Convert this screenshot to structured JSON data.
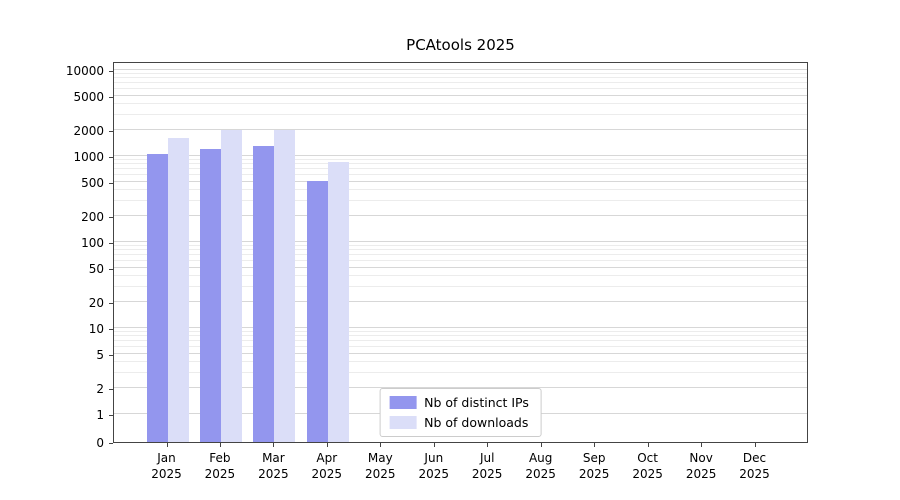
{
  "title": "PCAtools 2025",
  "chart_data": {
    "type": "bar",
    "title": "PCAtools 2025",
    "categories": [
      "Jan 2025",
      "Feb 2025",
      "Mar 2025",
      "Apr 2025",
      "May 2025",
      "Jun 2025",
      "Jul 2025",
      "Aug 2025",
      "Sep 2025",
      "Oct 2025",
      "Nov 2025",
      "Dec 2025"
    ],
    "series": [
      {
        "name": "Nb of distinct IPs",
        "color": "#9396ee",
        "values": [
          1050,
          1200,
          1300,
          510,
          null,
          null,
          null,
          null,
          null,
          null,
          null,
          null
        ]
      },
      {
        "name": "Nb of downloads",
        "color": "#dbdef8",
        "values": [
          1600,
          2000,
          2000,
          850,
          null,
          null,
          null,
          null,
          null,
          null,
          null,
          null
        ]
      }
    ],
    "xlabel": "",
    "ylabel": "",
    "yscale": "log",
    "yticks": [
      0,
      1,
      2,
      5,
      10,
      20,
      50,
      100,
      200,
      500,
      1000,
      2000,
      5000,
      10000
    ],
    "ylim": [
      0,
      10000
    ],
    "grid": "horizontal major+minor",
    "legend_position": "lower center inside"
  }
}
